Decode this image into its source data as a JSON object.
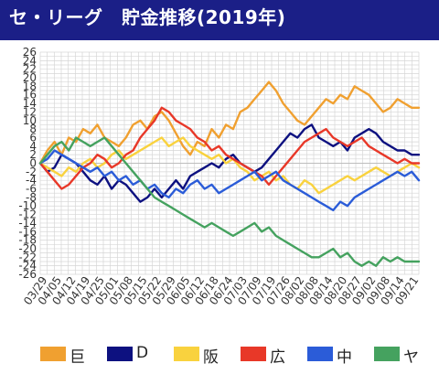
{
  "header": {
    "title": "セ・リーグ　貯金推移(2019年)"
  },
  "chart_data": {
    "type": "line",
    "title": "セ・リーグ　貯金推移(2019年)",
    "xlabel": "",
    "ylabel": "",
    "ylim": [
      -26,
      26
    ],
    "yticks": [
      26,
      24,
      22,
      20,
      18,
      16,
      14,
      12,
      10,
      8,
      6,
      4,
      2,
      0,
      -2,
      -4,
      -6,
      -8,
      -10,
      -12,
      -14,
      -16,
      -18,
      -20,
      -22,
      -24,
      -26
    ],
    "x_tick_labels": [
      "03/29",
      "04/05",
      "04/12",
      "04/19",
      "04/25",
      "05/01",
      "05/08",
      "05/15",
      "05/22",
      "05/29",
      "06/05",
      "06/12",
      "06/18",
      "06/24",
      "07/03",
      "07/09",
      "07/19",
      "07/26",
      "08/02",
      "08/08",
      "08/14",
      "08/20",
      "08/27",
      "09/02",
      "09/08",
      "09/14",
      "09/21"
    ],
    "grid": true,
    "legend_position": "bottom",
    "series": [
      {
        "name": "巨",
        "color": "#f0a030",
        "values": [
          0,
          3,
          5,
          2,
          6,
          5,
          8,
          7,
          9,
          6,
          5,
          4,
          6,
          9,
          10,
          8,
          11,
          12,
          10,
          7,
          4,
          2,
          5,
          4,
          8,
          6,
          9,
          8,
          12,
          13,
          15,
          17,
          19,
          17,
          14,
          12,
          10,
          9,
          11,
          13,
          15,
          14,
          16,
          15,
          18,
          17,
          16,
          14,
          12,
          13,
          15,
          14,
          13,
          13
        ]
      },
      {
        "name": "D",
        "color": "#0d1180",
        "values": [
          0,
          -2,
          -1,
          2,
          1,
          0,
          -2,
          -4,
          -5,
          -3,
          -6,
          -4,
          -5,
          -7,
          -9,
          -8,
          -6,
          -8,
          -6,
          -4,
          -6,
          -3,
          -2,
          -1,
          0,
          -1,
          1,
          2,
          0,
          -1,
          -2,
          -1,
          1,
          3,
          5,
          7,
          6,
          8,
          9,
          6,
          5,
          4,
          5,
          3,
          6,
          7,
          8,
          7,
          5,
          4,
          3,
          3,
          2,
          2
        ]
      },
      {
        "name": "阪",
        "color": "#f9d23e",
        "values": [
          0,
          -1,
          -2,
          -3,
          -1,
          -2,
          0,
          1,
          -1,
          0,
          2,
          3,
          1,
          2,
          3,
          4,
          5,
          6,
          4,
          5,
          6,
          4,
          3,
          2,
          1,
          2,
          0,
          1,
          -1,
          -2,
          -4,
          -3,
          -2,
          -4,
          -3,
          -5,
          -6,
          -4,
          -5,
          -7,
          -6,
          -5,
          -4,
          -3,
          -4,
          -3,
          -2,
          -1,
          -2,
          -3,
          -2,
          -1,
          0,
          -1
        ]
      },
      {
        "name": "広",
        "color": "#e83828",
        "values": [
          0,
          -2,
          -4,
          -6,
          -5,
          -3,
          -1,
          0,
          2,
          1,
          -1,
          0,
          2,
          3,
          6,
          8,
          10,
          13,
          12,
          10,
          9,
          8,
          6,
          5,
          3,
          4,
          2,
          1,
          0,
          -1,
          -2,
          -3,
          -5,
          -3,
          -1,
          1,
          3,
          5,
          6,
          7,
          8,
          6,
          5,
          4,
          5,
          6,
          4,
          3,
          2,
          1,
          0,
          1,
          0,
          0
        ]
      },
      {
        "name": "中",
        "color": "#2b5cd8",
        "values": [
          0,
          1,
          3,
          2,
          1,
          0,
          -1,
          -2,
          -1,
          -3,
          -2,
          -4,
          -3,
          -5,
          -4,
          -6,
          -5,
          -7,
          -8,
          -6,
          -7,
          -5,
          -4,
          -6,
          -5,
          -7,
          -6,
          -5,
          -4,
          -3,
          -2,
          -4,
          -3,
          -2,
          -4,
          -5,
          -6,
          -7,
          -8,
          -9,
          -10,
          -11,
          -9,
          -10,
          -8,
          -7,
          -6,
          -5,
          -4,
          -3,
          -2,
          -3,
          -2,
          -4
        ]
      },
      {
        "name": "ヤ",
        "color": "#45a25f",
        "values": [
          0,
          2,
          4,
          5,
          3,
          6,
          5,
          4,
          5,
          6,
          4,
          2,
          0,
          -2,
          -4,
          -6,
          -8,
          -9,
          -10,
          -11,
          -12,
          -13,
          -14,
          -15,
          -14,
          -15,
          -16,
          -17,
          -16,
          -15,
          -14,
          -16,
          -15,
          -17,
          -18,
          -19,
          -20,
          -21,
          -22,
          -22,
          -21,
          -20,
          -22,
          -21,
          -23,
          -24,
          -23,
          -24,
          -22,
          -23,
          -22,
          -23,
          -23,
          -23
        ]
      }
    ]
  }
}
